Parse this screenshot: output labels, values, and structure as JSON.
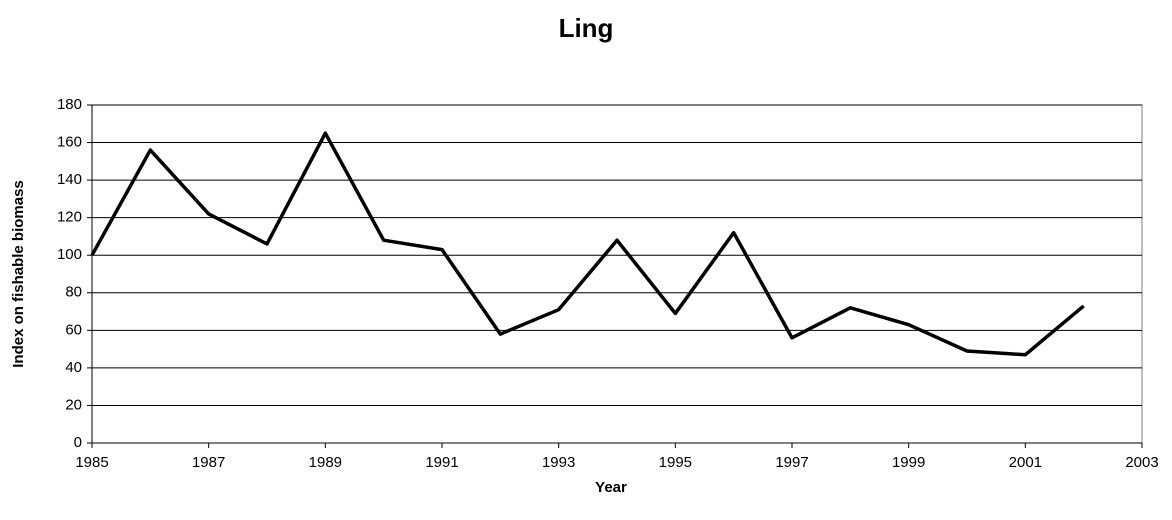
{
  "chart_data": {
    "type": "line",
    "title": "Ling",
    "x_label": "Year",
    "y_label": "Index on fishable biomass",
    "x": [
      1985,
      1986,
      1987,
      1988,
      1989,
      1990,
      1991,
      1992,
      1993,
      1994,
      1995,
      1996,
      1997,
      1998,
      1999,
      2000,
      2001,
      2002
    ],
    "values": [
      100,
      156,
      122,
      106,
      165,
      108,
      103,
      58,
      71,
      108,
      69,
      112,
      56,
      72,
      63,
      49,
      47,
      73
    ],
    "color": "#000000",
    "xlim": [
      1985,
      2003
    ],
    "xticks": [
      1985,
      1987,
      1989,
      1991,
      1993,
      1995,
      1997,
      1999,
      2001,
      2003
    ],
    "ylim": [
      0,
      180
    ],
    "yticks": [
      0,
      20,
      40,
      60,
      80,
      100,
      120,
      140,
      160,
      180
    ],
    "grid": true
  }
}
